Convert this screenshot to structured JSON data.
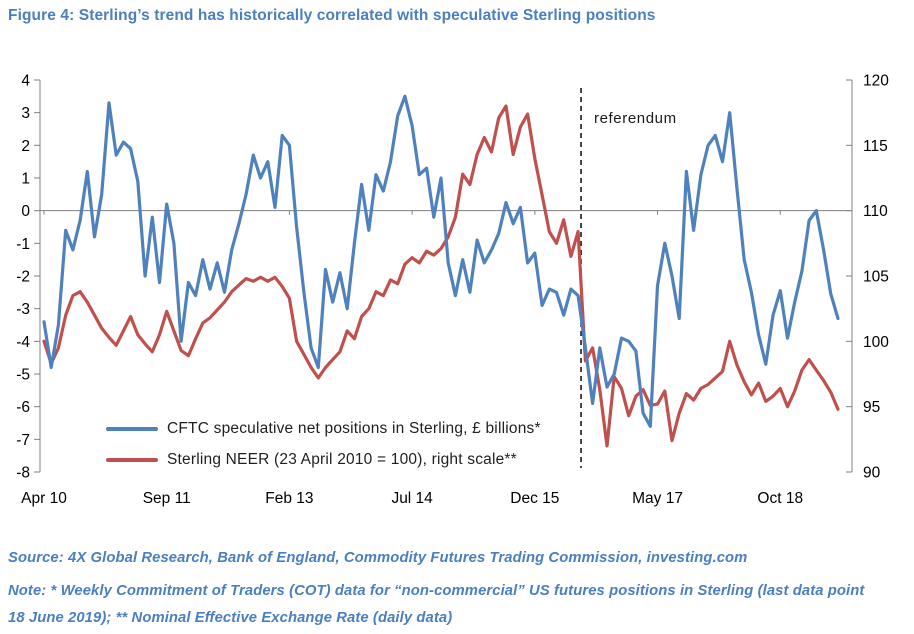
{
  "figure": {
    "title": "Figure 4: Sterling’s trend has historically correlated with speculative Sterling positions"
  },
  "footnotes": {
    "source": "Source: 4X Global Research, Bank of England, Commodity Futures Trading Commission, investing.com",
    "note_line1": "Note: * Weekly Commitment of Traders (COT) data for “non-commercial” US futures positions in Sterling (last data point",
    "note_line2": "18 June 2019); ** Nominal Effective Exchange Rate (daily data)"
  },
  "colors": {
    "heading_blue": "#4a7fc1",
    "series_blue": "#4f81bd",
    "series_red": "#c0504d",
    "axis_gray": "#808080",
    "zero_line_gray": "#7f7f7f",
    "tick_text": "#000000",
    "annotation_black": "#1a1a1a"
  },
  "chart_data": {
    "type": "line",
    "title": "",
    "xlabel": "",
    "ylabel_left": "CFTC speculative net positions in Sterling, £ billions",
    "ylabel_right": "Sterling NEER (23 April 2010 = 100)",
    "x_unit": "monthly points from Apr 2010 (index 0) to Jun 2019 (index 110)",
    "x_tick_labels": [
      "Apr 10",
      "Sep 11",
      "Feb 13",
      "Jul 14",
      "Dec 15",
      "May 17",
      "Oct 18"
    ],
    "x_tick_month_index": [
      0,
      17,
      34,
      51,
      68,
      85,
      102
    ],
    "left_axis": {
      "min": -8,
      "max": 4,
      "ticks": [
        4,
        3,
        2,
        1,
        0,
        -1,
        -2,
        -3,
        -4,
        -5,
        -6,
        -7,
        -8
      ]
    },
    "right_axis": {
      "min": 90,
      "max": 120,
      "ticks": [
        120,
        115,
        110,
        105,
        100,
        95,
        90
      ]
    },
    "grid": "zero-line-only",
    "legend_position": "inside bottom-left",
    "annotation": {
      "label": "referendum",
      "month_index": 74.4
    },
    "series": [
      {
        "name": "CFTC speculative net positions in Sterling, £ billions*",
        "key": "cftc-net-positions-line",
        "axis": "left",
        "color": "#4f81bd",
        "z": 2,
        "values": [
          -3.4,
          -4.8,
          -3.5,
          -0.6,
          -1.2,
          -0.3,
          1.2,
          -0.8,
          0.5,
          3.3,
          1.7,
          2.1,
          1.9,
          0.9,
          -2.0,
          -0.2,
          -2.2,
          0.2,
          -1.0,
          -4.0,
          -2.2,
          -2.6,
          -1.5,
          -2.4,
          -1.6,
          -2.5,
          -1.2,
          -0.4,
          0.5,
          1.7,
          1.0,
          1.5,
          0.1,
          2.3,
          2.0,
          -0.5,
          -2.5,
          -4.2,
          -4.8,
          -1.8,
          -2.8,
          -1.9,
          -3.0,
          -1.0,
          0.8,
          -0.6,
          1.1,
          0.6,
          1.5,
          2.9,
          3.5,
          2.6,
          1.1,
          1.3,
          -0.2,
          1.0,
          -1.6,
          -2.6,
          -1.5,
          -2.5,
          -0.9,
          -1.6,
          -1.2,
          -0.7,
          0.25,
          -0.4,
          0.1,
          -1.6,
          -1.3,
          -2.9,
          -2.4,
          -2.5,
          -3.2,
          -2.4,
          -2.6,
          -4.2,
          -5.9,
          -4.2,
          -5.4,
          -5.0,
          -3.9,
          -4.0,
          -4.3,
          -6.2,
          -6.6,
          -2.3,
          -1.0,
          -2.0,
          -3.3,
          1.2,
          -0.6,
          1.1,
          2.0,
          2.3,
          1.5,
          3.0,
          0.7,
          -1.5,
          -2.5,
          -3.8,
          -4.7,
          -3.2,
          -2.45,
          -3.9,
          -2.8,
          -1.85,
          -0.3,
          0.0,
          -1.2,
          -2.55,
          -3.3
        ]
      },
      {
        "name": "Sterling NEER (23 April 2010 = 100), right scale**",
        "key": "sterling-neer-line",
        "axis": "right",
        "color": "#c0504d",
        "z": 1,
        "values": [
          100.0,
          98.3,
          99.5,
          102.0,
          103.5,
          103.8,
          103.0,
          102.0,
          101.0,
          100.3,
          99.7,
          100.8,
          101.9,
          100.5,
          99.8,
          99.2,
          100.5,
          102.3,
          100.8,
          99.3,
          98.9,
          100.2,
          101.4,
          101.8,
          102.4,
          103.0,
          103.8,
          104.3,
          104.8,
          104.6,
          104.9,
          104.6,
          104.9,
          104.2,
          103.3,
          100.0,
          99.0,
          98.0,
          97.2,
          98.0,
          98.6,
          99.2,
          100.8,
          100.2,
          101.9,
          102.5,
          103.8,
          103.5,
          104.7,
          104.4,
          105.9,
          106.4,
          106.0,
          106.9,
          106.6,
          107.1,
          108.0,
          109.5,
          112.8,
          112.0,
          114.3,
          115.6,
          114.5,
          117.1,
          118.0,
          114.3,
          116.4,
          117.4,
          114.0,
          111.2,
          108.4,
          107.5,
          109.3,
          106.5,
          108.4,
          98.5,
          99.5,
          96.3,
          92.0,
          97.3,
          96.4,
          94.3,
          95.8,
          96.3,
          95.1,
          95.2,
          96.2,
          92.4,
          94.5,
          96.0,
          95.5,
          96.4,
          96.7,
          97.2,
          97.7,
          100.0,
          98.2,
          96.9,
          95.9,
          96.8,
          95.4,
          95.8,
          96.4,
          95.0,
          96.2,
          97.8,
          98.6,
          97.8,
          97.0,
          96.1,
          94.8
        ]
      }
    ]
  }
}
